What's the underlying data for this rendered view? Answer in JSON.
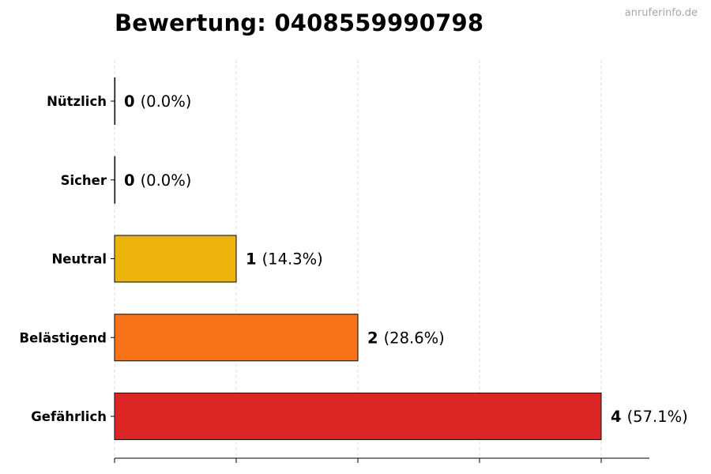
{
  "title": "Bewertung: 0408559990798",
  "watermark": "anruferinfo.de",
  "chart_data": {
    "type": "bar",
    "orientation": "horizontal",
    "title": "Bewertung: 0408559990798",
    "categories": [
      "Nützlich",
      "Sicher",
      "Neutral",
      "Belästigend",
      "Gefährlich"
    ],
    "values": [
      0,
      0,
      1,
      2,
      4
    ],
    "percent_labels": [
      "(0.0%)",
      "(0.0%)",
      "(14.3%)",
      "(28.6%)",
      "(57.1%)"
    ],
    "colors": [
      "#2db84d",
      "#2b82c9",
      "#ecb30d",
      "#f97316",
      "#dc2626"
    ],
    "xlim": [
      0,
      4.4
    ],
    "x_gridlines": [
      0,
      1,
      2,
      3,
      4
    ],
    "grid": "vertical dashed",
    "x_tick_labels_shown": false,
    "xlabel": "",
    "ylabel": ""
  }
}
